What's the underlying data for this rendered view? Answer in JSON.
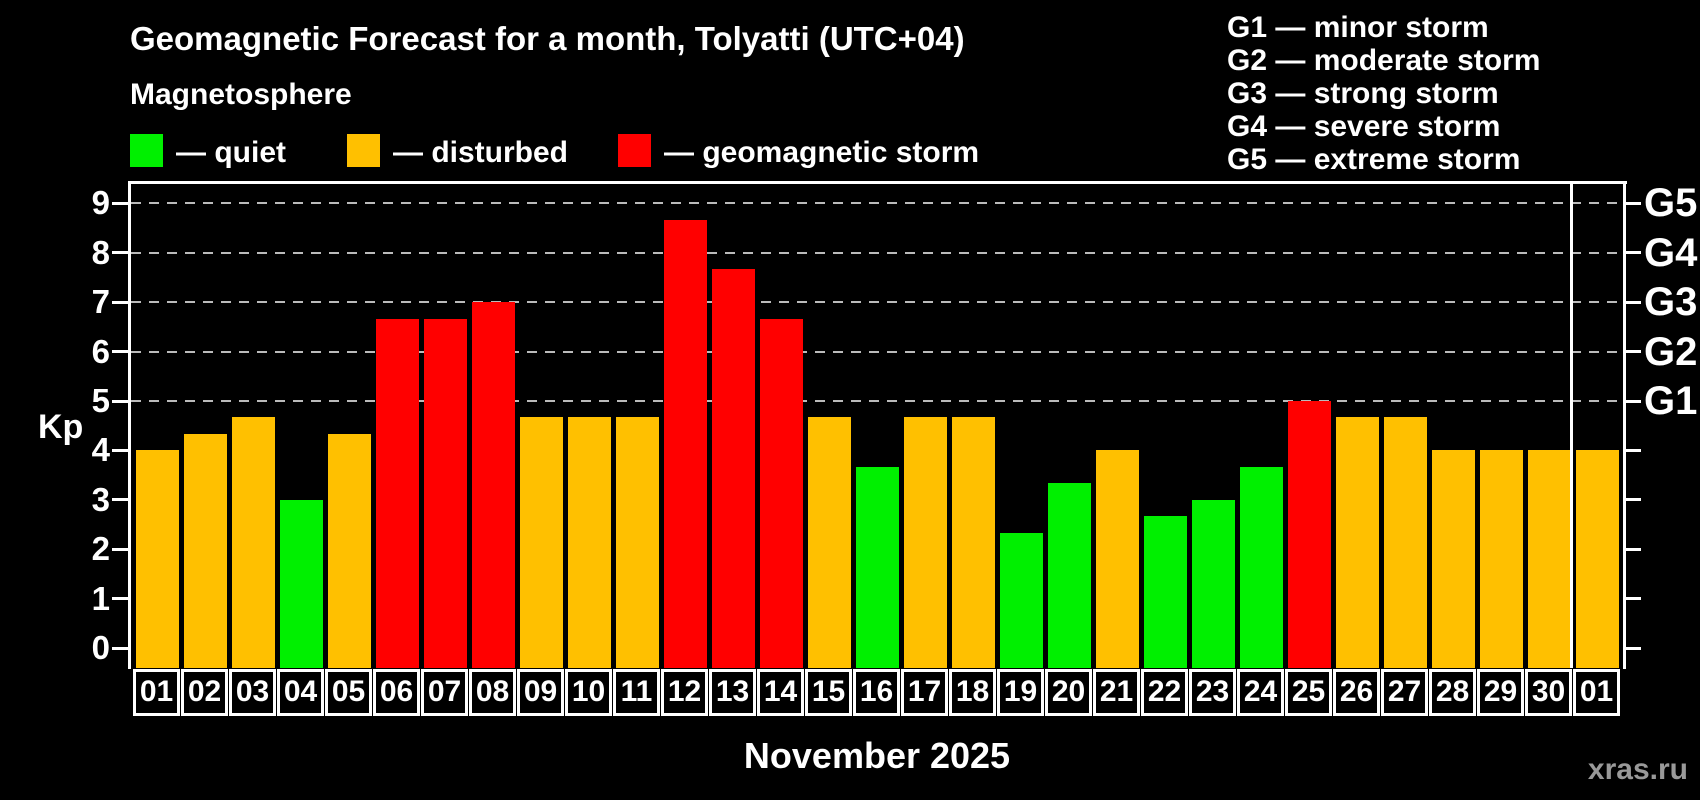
{
  "header": {
    "title": "Geomagnetic Forecast for a month, Tolyatti (UTC+04)",
    "subtitle": "Magnetosphere"
  },
  "legend": {
    "items": [
      {
        "key": "quiet",
        "label": "— quiet"
      },
      {
        "key": "disturbed",
        "label": "— disturbed"
      },
      {
        "key": "storm",
        "label": "— geomagnetic storm"
      }
    ]
  },
  "storm_scale": {
    "lines": [
      "G1 — minor storm",
      "G2 — moderate storm",
      "G3 — strong storm",
      "G4 — severe storm",
      "G5 — extreme storm"
    ]
  },
  "colors": {
    "quiet": "#00f000",
    "disturbed": "#ffc000",
    "storm": "#ff0000",
    "background": "#000000",
    "axis": "#ffffff",
    "grid": "#bbbbbb",
    "watermark": "#999999"
  },
  "axis": {
    "ylabel": "Kp",
    "yticks": [
      0,
      1,
      2,
      3,
      4,
      5,
      6,
      7,
      8,
      9
    ],
    "gridlines": [
      5,
      6,
      7,
      8,
      9
    ],
    "right_labels": [
      {
        "kp": 5,
        "label": "G1"
      },
      {
        "kp": 6,
        "label": "G2"
      },
      {
        "kp": 7,
        "label": "G3"
      },
      {
        "kp": 8,
        "label": "G4"
      },
      {
        "kp": 9,
        "label": "G5"
      }
    ]
  },
  "footer": {
    "month_label": "November 2025",
    "watermark": "xras.ru"
  },
  "chart_data": {
    "type": "bar",
    "title": "Geomagnetic Forecast for a month, Tolyatti (UTC+04)",
    "xlabel": "November 2025",
    "ylabel": "Kp",
    "ylim": [
      0,
      9.4
    ],
    "grid": "horizontal dashed lines at Kp 5,6,7,8,9 (G1..G5)",
    "legend_position": "top",
    "categories": [
      "01",
      "02",
      "03",
      "04",
      "05",
      "06",
      "07",
      "08",
      "09",
      "10",
      "11",
      "12",
      "13",
      "14",
      "15",
      "16",
      "17",
      "18",
      "19",
      "20",
      "21",
      "22",
      "23",
      "24",
      "25",
      "26",
      "27",
      "28",
      "29",
      "30",
      "01"
    ],
    "values": [
      4.0,
      4.33,
      4.67,
      3.0,
      4.33,
      6.67,
      6.67,
      7.0,
      4.67,
      4.67,
      4.67,
      8.67,
      7.67,
      6.67,
      4.67,
      3.67,
      4.67,
      4.67,
      2.33,
      3.33,
      4.0,
      2.67,
      3.0,
      3.67,
      5.0,
      4.67,
      4.67,
      4.0,
      4.0,
      4.0,
      4.0
    ],
    "statuses": [
      "disturbed",
      "disturbed",
      "disturbed",
      "quiet",
      "disturbed",
      "storm",
      "storm",
      "storm",
      "disturbed",
      "disturbed",
      "disturbed",
      "storm",
      "storm",
      "storm",
      "disturbed",
      "quiet",
      "disturbed",
      "disturbed",
      "quiet",
      "quiet",
      "disturbed",
      "quiet",
      "quiet",
      "quiet",
      "storm",
      "disturbed",
      "disturbed",
      "disturbed",
      "disturbed",
      "disturbed",
      "disturbed"
    ],
    "month_separator_after_index": 29
  }
}
